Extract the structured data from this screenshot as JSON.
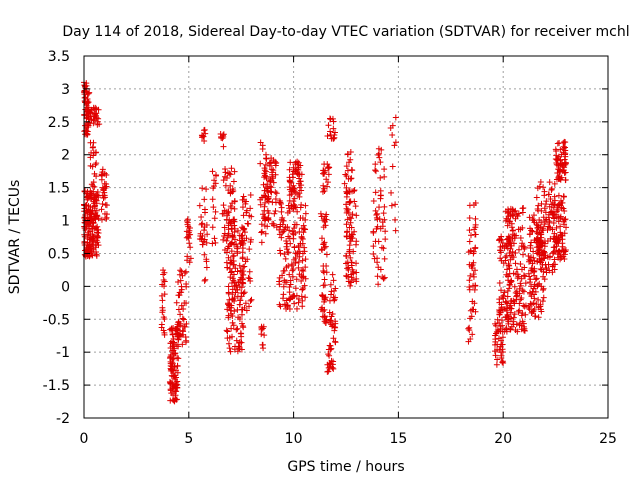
{
  "chart_data": {
    "type": "scatter",
    "title": "Day 114 of 2018, Sidereal Day-to-day VTEC variation (SDTVAR) for receiver mchl",
    "xlabel": "GPS time / hours",
    "ylabel": "SDTVAR / TECUs",
    "xlim": [
      0,
      25
    ],
    "ylim": [
      -2,
      3.5
    ],
    "xticks": [
      "0",
      "5",
      "10",
      "15",
      "20",
      "25"
    ],
    "yticks": [
      "-2",
      "-1.5",
      "-1",
      "-0.5",
      "0",
      "0.5",
      "1",
      "1.5",
      "2",
      "2.5",
      "3",
      "3.5"
    ],
    "grid": true,
    "marker": "+",
    "color": "#e00000",
    "clusters": [
      {
        "x": [
          0.0,
          0.25
        ],
        "y": [
          2.3,
          3.1
        ],
        "n": 60
      },
      {
        "x": [
          0.0,
          0.7
        ],
        "y": [
          0.45,
          1.45
        ],
        "n": 180
      },
      {
        "x": [
          0.2,
          0.75
        ],
        "y": [
          2.45,
          2.75
        ],
        "n": 30
      },
      {
        "x": [
          0.3,
          0.6
        ],
        "y": [
          1.5,
          2.2
        ],
        "n": 20
      },
      {
        "x": [
          0.8,
          1.1
        ],
        "y": [
          1.0,
          1.8
        ],
        "n": 30
      },
      {
        "x": [
          3.7,
          3.9
        ],
        "y": [
          -0.75,
          0.25
        ],
        "n": 20
      },
      {
        "x": [
          4.1,
          4.5
        ],
        "y": [
          -1.75,
          -0.6
        ],
        "n": 110
      },
      {
        "x": [
          4.4,
          4.9
        ],
        "y": [
          -0.9,
          0.25
        ],
        "n": 50
      },
      {
        "x": [
          4.9,
          5.1
        ],
        "y": [
          0.3,
          1.05
        ],
        "n": 20
      },
      {
        "x": [
          5.6,
          5.8
        ],
        "y": [
          2.2,
          2.4
        ],
        "n": 8
      },
      {
        "x": [
          5.5,
          5.9
        ],
        "y": [
          -0.1,
          1.6
        ],
        "n": 30
      },
      {
        "x": [
          6.1,
          6.3
        ],
        "y": [
          0.6,
          1.8
        ],
        "n": 15
      },
      {
        "x": [
          6.5,
          6.7
        ],
        "y": [
          2.1,
          2.4
        ],
        "n": 8
      },
      {
        "x": [
          6.6,
          7.2
        ],
        "y": [
          0.4,
          1.8
        ],
        "n": 60
      },
      {
        "x": [
          6.8,
          7.6
        ],
        "y": [
          -1.0,
          0.9
        ],
        "n": 140
      },
      {
        "x": [
          7.5,
          8.0
        ],
        "y": [
          -0.4,
          1.4
        ],
        "n": 50
      },
      {
        "x": [
          8.4,
          8.6
        ],
        "y": [
          -0.95,
          -0.6
        ],
        "n": 10
      },
      {
        "x": [
          8.4,
          8.7
        ],
        "y": [
          0.6,
          2.3
        ],
        "n": 25
      },
      {
        "x": [
          8.6,
          9.2
        ],
        "y": [
          0.9,
          1.95
        ],
        "n": 70
      },
      {
        "x": [
          9.3,
          10.6
        ],
        "y": [
          -0.35,
          1.3
        ],
        "n": 160
      },
      {
        "x": [
          9.8,
          10.4
        ],
        "y": [
          1.3,
          1.9
        ],
        "n": 50
      },
      {
        "x": [
          11.3,
          11.6
        ],
        "y": [
          -0.6,
          1.2
        ],
        "n": 50
      },
      {
        "x": [
          11.4,
          11.7
        ],
        "y": [
          1.4,
          1.9
        ],
        "n": 20
      },
      {
        "x": [
          11.6,
          11.9
        ],
        "y": [
          -1.3,
          -0.9
        ],
        "n": 20
      },
      {
        "x": [
          11.6,
          12.0
        ],
        "y": [
          2.2,
          2.55
        ],
        "n": 15
      },
      {
        "x": [
          11.7,
          12.0
        ],
        "y": [
          -0.9,
          0.2
        ],
        "n": 30
      },
      {
        "x": [
          12.5,
          13.0
        ],
        "y": [
          0.0,
          1.5
        ],
        "n": 80
      },
      {
        "x": [
          12.4,
          12.8
        ],
        "y": [
          1.5,
          2.05
        ],
        "n": 15
      },
      {
        "x": [
          13.8,
          14.4
        ],
        "y": [
          0.0,
          1.9
        ],
        "n": 50
      },
      {
        "x": [
          14.0,
          14.2
        ],
        "y": [
          1.9,
          2.1
        ],
        "n": 5
      },
      {
        "x": [
          14.6,
          14.9
        ],
        "y": [
          0.0,
          2.6
        ],
        "n": 12
      },
      {
        "x": [
          18.3,
          18.7
        ],
        "y": [
          -0.85,
          1.3
        ],
        "n": 50
      },
      {
        "x": [
          19.6,
          20.0
        ],
        "y": [
          -1.2,
          -0.5
        ],
        "n": 35
      },
      {
        "x": [
          19.8,
          20.4
        ],
        "y": [
          -0.7,
          0.8
        ],
        "n": 80
      },
      {
        "x": [
          20.1,
          21.1
        ],
        "y": [
          -0.7,
          1.2
        ],
        "n": 140
      },
      {
        "x": [
          21.2,
          22.0
        ],
        "y": [
          -0.5,
          1.1
        ],
        "n": 110
      },
      {
        "x": [
          21.6,
          22.5
        ],
        "y": [
          0.2,
          1.6
        ],
        "n": 110
      },
      {
        "x": [
          22.4,
          23.0
        ],
        "y": [
          0.4,
          1.4
        ],
        "n": 80
      },
      {
        "x": [
          22.5,
          23.0
        ],
        "y": [
          1.6,
          2.2
        ],
        "n": 60
      }
    ]
  }
}
